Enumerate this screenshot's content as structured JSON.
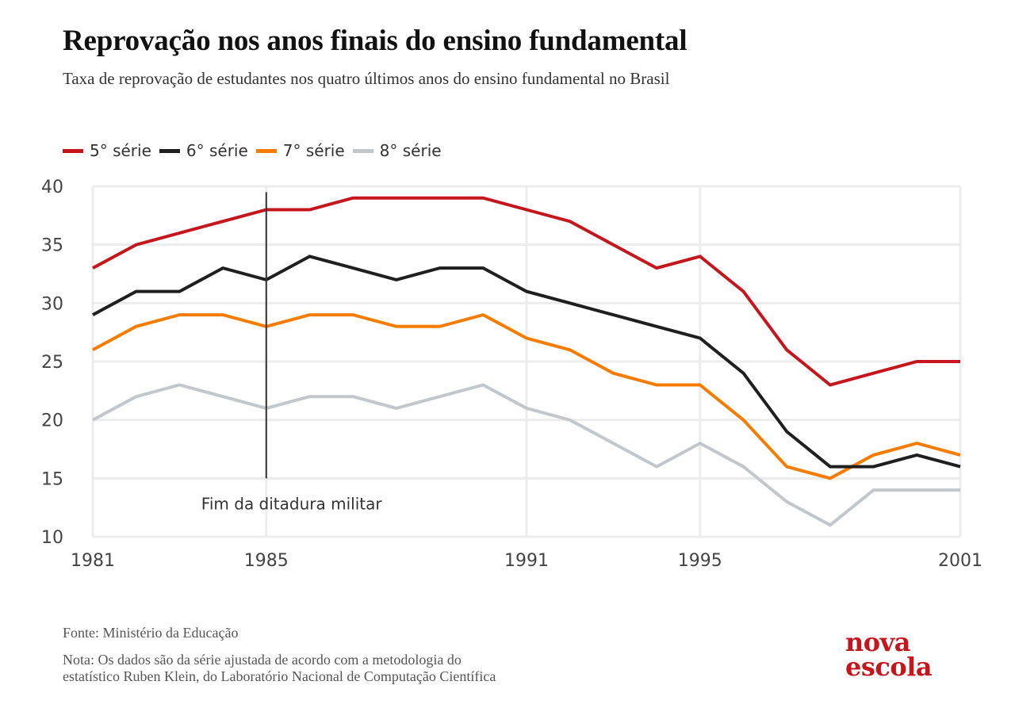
{
  "header": {
    "title": "Reprovação nos anos finais do ensino fundamental",
    "subtitle": "Taxa de reprovação de estudantes nos quatro últimos anos do ensino fundamental no Brasil"
  },
  "footer": {
    "source": "Fonte: Ministério da Educação",
    "note": "Nota: Os dados são da série ajustada de acordo com a metodologia do\nestatístico Ruben Klein, do Laboratório Nacional de Computação Científica"
  },
  "logo": {
    "line1": "nova",
    "line2": "escola",
    "color": "#c4161c"
  },
  "chart_data": {
    "type": "line",
    "title": "Reprovação nos anos finais do ensino fundamental",
    "subtitle": "Taxa de reprovação de estudantes nos quatro últimos anos do ensino fundamental no Brasil",
    "xlabel": "",
    "ylabel": "",
    "x": [
      1981,
      1982,
      1983,
      1984,
      1985,
      1986,
      1987,
      1988,
      1989,
      1990,
      1991,
      1992,
      1993,
      1994,
      1995,
      1996,
      1997,
      1998,
      1999,
      2000,
      2001
    ],
    "x_ticks": [
      1981,
      1985,
      1991,
      1995,
      2001
    ],
    "x_tick_labels": [
      "1981",
      "1985",
      "1991",
      "1995",
      "2001"
    ],
    "y_ticks": [
      10,
      15,
      20,
      25,
      30,
      35,
      40
    ],
    "y_tick_labels": [
      "10",
      "15",
      "20",
      "25",
      "30",
      "35",
      "40"
    ],
    "xlim": [
      1981,
      2001
    ],
    "ylim": [
      10,
      40
    ],
    "grid": true,
    "legend_position": "top-left",
    "series": [
      {
        "name": "5° série",
        "color": "#c4161c",
        "values": [
          33,
          35,
          36,
          37,
          38,
          38,
          39,
          39,
          39,
          39,
          38,
          37,
          35,
          33,
          34,
          31,
          26,
          23,
          24,
          25,
          25
        ]
      },
      {
        "name": "6° série",
        "color": "#1f1f1f",
        "values": [
          29,
          31,
          31,
          33,
          32,
          34,
          33,
          32,
          33,
          33,
          31,
          30,
          29,
          28,
          27,
          24,
          19,
          16,
          16,
          17,
          16
        ]
      },
      {
        "name": "7° série",
        "color": "#f57c00",
        "values": [
          26,
          28,
          29,
          29,
          28,
          29,
          29,
          28,
          28,
          29,
          27,
          26,
          24,
          23,
          23,
          20,
          16,
          15,
          17,
          18,
          17
        ]
      },
      {
        "name": "8° série",
        "color": "#c2c7cb",
        "values": [
          20,
          22,
          23,
          22,
          21,
          22,
          22,
          21,
          22,
          23,
          21,
          20,
          18,
          16,
          18,
          16,
          13,
          11,
          14,
          14,
          14
        ]
      }
    ],
    "annotations": [
      {
        "x": 1985,
        "y_from": 15,
        "y_to": 39.5,
        "label": "Fim da ditadura militar"
      }
    ]
  }
}
